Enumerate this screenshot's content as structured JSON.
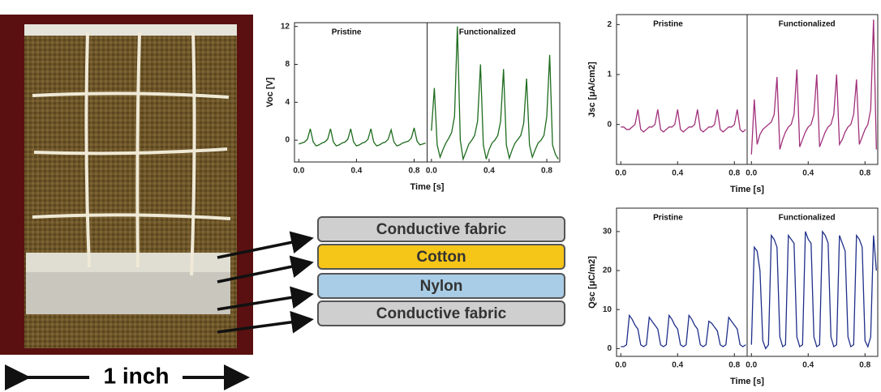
{
  "photo": {
    "scale_label": "1 inch"
  },
  "diagram": {
    "layers": [
      "Conductive fabric",
      "Cotton",
      "Nylon",
      "Conductive fabric"
    ]
  },
  "chart_data": [
    {
      "type": "line",
      "ylabel": "Voc [V]",
      "xlabel": "Time [s]",
      "color": "#1e6b1e",
      "x": [
        0,
        0.02,
        0.04,
        0.06,
        0.08,
        0.1,
        0.12,
        0.14,
        0.16,
        0.18,
        0.2,
        0.22,
        0.24,
        0.26,
        0.28,
        0.3,
        0.32,
        0.34,
        0.36,
        0.38,
        0.4,
        0.42,
        0.44,
        0.46,
        0.48,
        0.5,
        0.52,
        0.54,
        0.56,
        0.58,
        0.6,
        0.62,
        0.64,
        0.66,
        0.68,
        0.7,
        0.72,
        0.74,
        0.76,
        0.78,
        0.8,
        0.82,
        0.84,
        0.86,
        0.88
      ],
      "xlim": [
        -0.03,
        0.89
      ],
      "xticks": [
        {
          "value": 0,
          "label": "0.0"
        },
        {
          "value": 0.4,
          "label": "0.4"
        },
        {
          "value": 0.8,
          "label": "0.8"
        }
      ],
      "ylim": [
        -2.3,
        12.4
      ],
      "yticks": [
        0,
        4,
        8,
        12
      ],
      "panels": [
        {
          "title": "Pristine",
          "values": [
            -0.4,
            -0.3,
            -0.2,
            0.1,
            1.2,
            -0.2,
            -0.6,
            -0.5,
            -0.3,
            -0.2,
            0.1,
            1.2,
            -0.2,
            -0.6,
            -0.5,
            -0.3,
            -0.2,
            0.1,
            1.2,
            -0.2,
            -0.6,
            -0.5,
            -0.3,
            -0.2,
            0.1,
            1.2,
            -0.2,
            -0.6,
            -0.5,
            -0.3,
            -0.2,
            0.1,
            1.1,
            -0.2,
            -0.6,
            -0.5,
            -0.3,
            -0.2,
            -0.1,
            0.2,
            1.3,
            -0.1,
            -0.5,
            -0.4,
            -0.3
          ]
        },
        {
          "title": "Functionalized",
          "values": [
            1,
            5.5,
            -0.5,
            -1.8,
            -1,
            -0.3,
            0.2,
            0.8,
            2.5,
            12,
            0,
            -2,
            -1.2,
            -0.4,
            0,
            0.5,
            2,
            8,
            -0.5,
            -2,
            -1,
            -0.3,
            0,
            0.5,
            2,
            7.5,
            -0.5,
            -1.9,
            -1,
            -0.3,
            0.1,
            0.5,
            1.8,
            6.5,
            -0.5,
            -1.8,
            -1,
            -0.3,
            0,
            0.5,
            2.5,
            9,
            -0.5,
            -1.5,
            -2
          ]
        }
      ]
    },
    {
      "type": "line",
      "ylabel": "Jsc [μA/cm2]",
      "xlabel": "Time [s]",
      "color": "#a0307a",
      "x": [
        0,
        0.02,
        0.04,
        0.06,
        0.08,
        0.1,
        0.12,
        0.14,
        0.16,
        0.18,
        0.2,
        0.22,
        0.24,
        0.26,
        0.28,
        0.3,
        0.32,
        0.34,
        0.36,
        0.38,
        0.4,
        0.42,
        0.44,
        0.46,
        0.48,
        0.5,
        0.52,
        0.54,
        0.56,
        0.58,
        0.6,
        0.62,
        0.64,
        0.66,
        0.68,
        0.7,
        0.72,
        0.74,
        0.76,
        0.78,
        0.8,
        0.82,
        0.84,
        0.86,
        0.88
      ],
      "xlim": [
        -0.03,
        0.89
      ],
      "xticks": [
        {
          "value": 0,
          "label": "0.0"
        },
        {
          "value": 0.4,
          "label": "0.4"
        },
        {
          "value": 0.8,
          "label": "0.8"
        }
      ],
      "ylim": [
        -0.8,
        2.2
      ],
      "yticks": [
        0,
        1,
        2
      ],
      "panels": [
        {
          "title": "Pristine",
          "values": [
            -0.05,
            -0.05,
            -0.1,
            -0.1,
            -0.05,
            0,
            0.3,
            -0.1,
            -0.15,
            -0.1,
            -0.05,
            -0.05,
            0,
            0.3,
            -0.1,
            -0.15,
            -0.1,
            -0.05,
            -0.05,
            0,
            0.3,
            -0.1,
            -0.15,
            -0.1,
            -0.05,
            -0.05,
            0,
            0.3,
            -0.1,
            -0.15,
            -0.1,
            -0.05,
            -0.05,
            0,
            0.3,
            -0.1,
            -0.15,
            -0.1,
            -0.05,
            -0.05,
            0,
            0.3,
            -0.1,
            -0.15,
            -0.1
          ]
        },
        {
          "title": "Functionalized",
          "values": [
            -0.6,
            0.5,
            -0.4,
            -0.2,
            -0.1,
            -0.05,
            0,
            0.05,
            0.2,
            0.95,
            -0.5,
            -0.3,
            -0.15,
            -0.05,
            0,
            0.2,
            1.1,
            -0.45,
            -0.3,
            -0.15,
            -0.05,
            0,
            0.2,
            1.0,
            -0.45,
            -0.3,
            -0.15,
            -0.05,
            0,
            0.2,
            1.0,
            -0.4,
            -0.3,
            -0.15,
            -0.05,
            0,
            0.2,
            0.9,
            -0.4,
            -0.25,
            -0.1,
            0,
            0.3,
            2.1,
            -0.5
          ]
        }
      ]
    },
    {
      "type": "line",
      "ylabel": "Qsc [μC/m2]",
      "xlabel": "Time [s]",
      "color": "#1f2f8a",
      "x": [
        0,
        0.02,
        0.04,
        0.06,
        0.08,
        0.1,
        0.12,
        0.14,
        0.16,
        0.18,
        0.2,
        0.22,
        0.24,
        0.26,
        0.28,
        0.3,
        0.32,
        0.34,
        0.36,
        0.38,
        0.4,
        0.42,
        0.44,
        0.46,
        0.48,
        0.5,
        0.52,
        0.54,
        0.56,
        0.58,
        0.6,
        0.62,
        0.64,
        0.66,
        0.68,
        0.7,
        0.72,
        0.74,
        0.76,
        0.78,
        0.8,
        0.82,
        0.84,
        0.86,
        0.88
      ],
      "xlim": [
        -0.03,
        0.89
      ],
      "xticks": [
        {
          "value": 0,
          "label": "0.0"
        },
        {
          "value": 0.4,
          "label": "0.4"
        },
        {
          "value": 0.8,
          "label": "0.8"
        }
      ],
      "ylim": [
        -2,
        36
      ],
      "yticks": [
        0,
        10,
        20,
        30
      ],
      "panels": [
        {
          "title": "Pristine",
          "values": [
            0.5,
            0.5,
            1,
            8.5,
            7.5,
            6,
            5,
            1,
            0.5,
            1,
            8,
            7,
            6,
            5,
            1,
            0.5,
            1,
            8.5,
            7.5,
            6,
            5,
            1,
            0.5,
            1,
            8.5,
            7.5,
            6,
            5,
            1,
            0.5,
            1,
            7,
            6.5,
            5.5,
            4.5,
            1,
            0.5,
            1,
            8,
            7,
            6,
            5,
            1,
            0.5,
            1
          ]
        },
        {
          "title": "Functionalized",
          "values": [
            1,
            26,
            25,
            20,
            2,
            0,
            1,
            29,
            28,
            26,
            3,
            0.5,
            1,
            29,
            28,
            27,
            3,
            0.5,
            1,
            30,
            28,
            27,
            3,
            0.5,
            1,
            30,
            29,
            27,
            3,
            0.5,
            1,
            29,
            27,
            25,
            3,
            0.5,
            1,
            29,
            28,
            26,
            2,
            0.5,
            3,
            29,
            20
          ]
        }
      ]
    }
  ]
}
